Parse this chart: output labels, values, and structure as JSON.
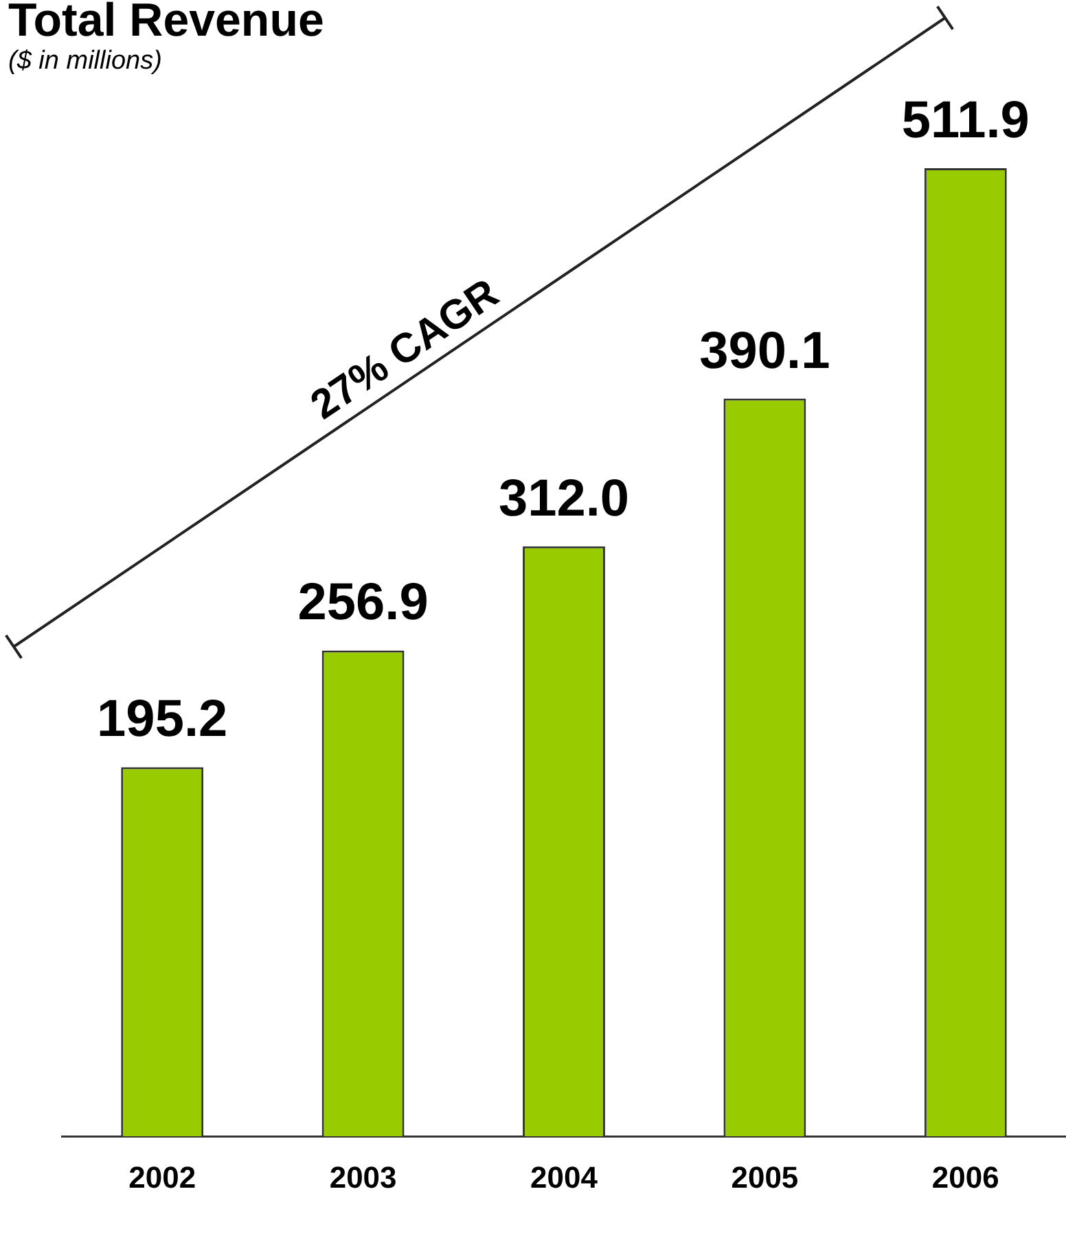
{
  "chart_data": {
    "type": "bar",
    "title": "Total Revenue",
    "subtitle": "($ in millions)",
    "categories": [
      "2002",
      "2003",
      "2004",
      "2005",
      "2006"
    ],
    "values": [
      195.2,
      256.9,
      312.0,
      390.1,
      511.9
    ],
    "color": "#99cc00",
    "value_labels": [
      "195.2",
      "256.9",
      "312.0",
      "390.1",
      "511.9"
    ],
    "annotations": [
      "27% CAGR"
    ],
    "legend": false,
    "grid": false
  }
}
